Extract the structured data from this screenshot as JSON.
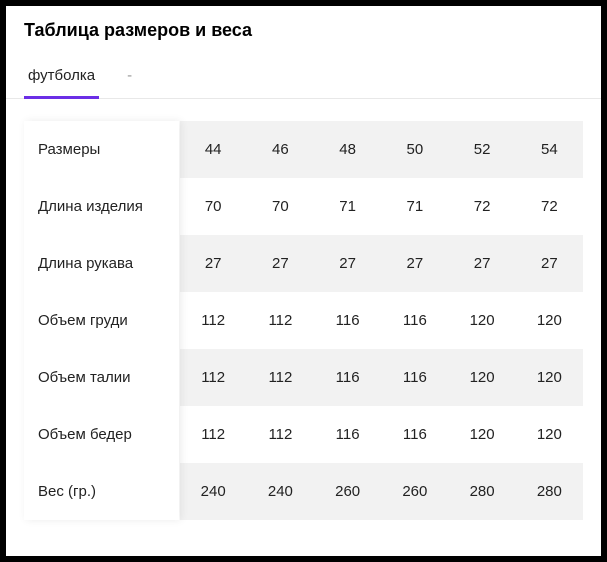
{
  "title": "Таблица размеров и веса",
  "tabs": {
    "active_label": "футболка",
    "dash": "-"
  },
  "table": {
    "columns": [
      "44",
      "46",
      "48",
      "50",
      "52",
      "54"
    ],
    "rows": [
      {
        "label": "Размеры",
        "values": [
          "44",
          "46",
          "48",
          "50",
          "52",
          "54"
        ],
        "shaded": true
      },
      {
        "label": "Длина изделия",
        "values": [
          "70",
          "70",
          "71",
          "71",
          "72",
          "72"
        ],
        "shaded": false
      },
      {
        "label": "Длина рукава",
        "values": [
          "27",
          "27",
          "27",
          "27",
          "27",
          "27"
        ],
        "shaded": true
      },
      {
        "label": "Объем груди",
        "values": [
          "112",
          "112",
          "116",
          "116",
          "120",
          "120"
        ],
        "shaded": false
      },
      {
        "label": "Объем талии",
        "values": [
          "112",
          "112",
          "116",
          "116",
          "120",
          "120"
        ],
        "shaded": true
      },
      {
        "label": "Объем бедер",
        "values": [
          "112",
          "112",
          "116",
          "116",
          "120",
          "120"
        ],
        "shaded": false
      },
      {
        "label": "Вес (гр.)",
        "values": [
          "240",
          "240",
          "260",
          "260",
          "280",
          "280"
        ],
        "shaded": true
      }
    ]
  },
  "style": {
    "accent_color": "#6b2ee6",
    "row_shade": "#f2f2f2",
    "text_color": "#222222",
    "border_color": "#e8e8e8"
  }
}
